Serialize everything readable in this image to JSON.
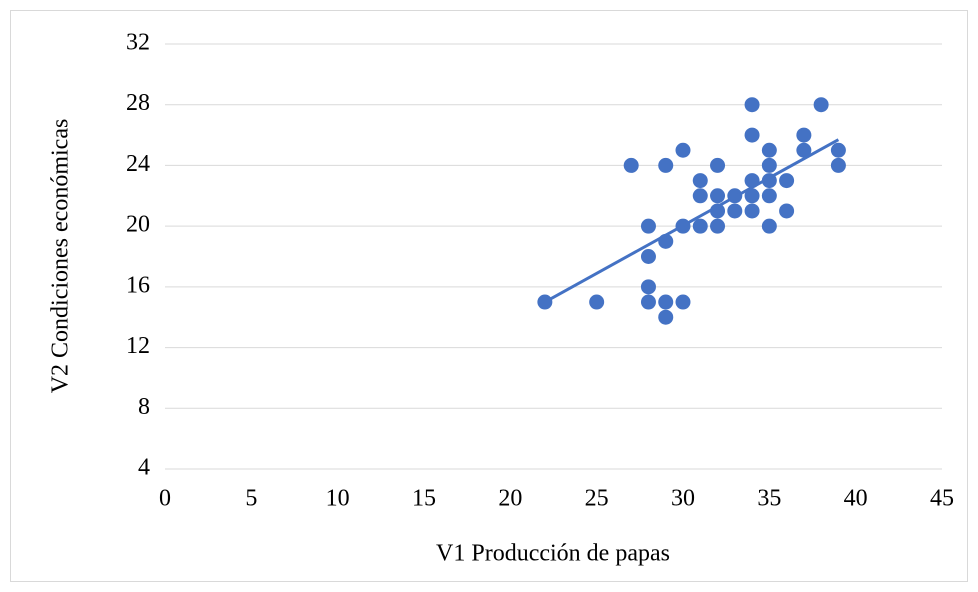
{
  "chart_data": {
    "type": "scatter",
    "x_label": "V1 Producción de papas",
    "y_label": "V2 Condiciones económicas",
    "x": [
      22,
      25,
      27,
      28,
      28,
      28,
      28,
      29,
      29,
      29,
      29,
      30,
      30,
      30,
      31,
      31,
      31,
      32,
      32,
      32,
      32,
      33,
      33,
      34,
      34,
      34,
      34,
      34,
      35,
      35,
      35,
      35,
      35,
      36,
      36,
      37,
      37,
      38,
      39,
      39
    ],
    "values": [
      15,
      15,
      24,
      20,
      18,
      16,
      15,
      24,
      19,
      15,
      14,
      25,
      20,
      15,
      23,
      22,
      20,
      24,
      22,
      21,
      20,
      22,
      21,
      28,
      26,
      23,
      22,
      21,
      25,
      24,
      23,
      22,
      20,
      23,
      21,
      26,
      25,
      28,
      25,
      24
    ],
    "color": "#4472c4",
    "trendline": {
      "x": [
        22,
        39
      ],
      "values": [
        15,
        25.7
      ]
    },
    "xlim": [
      0,
      45
    ],
    "xticks": [
      0,
      5,
      10,
      15,
      20,
      25,
      30,
      35,
      40,
      45
    ],
    "ylim": [
      4,
      32
    ],
    "yticks": [
      4,
      8,
      12,
      16,
      20,
      24,
      28,
      32
    ],
    "grid": true
  }
}
